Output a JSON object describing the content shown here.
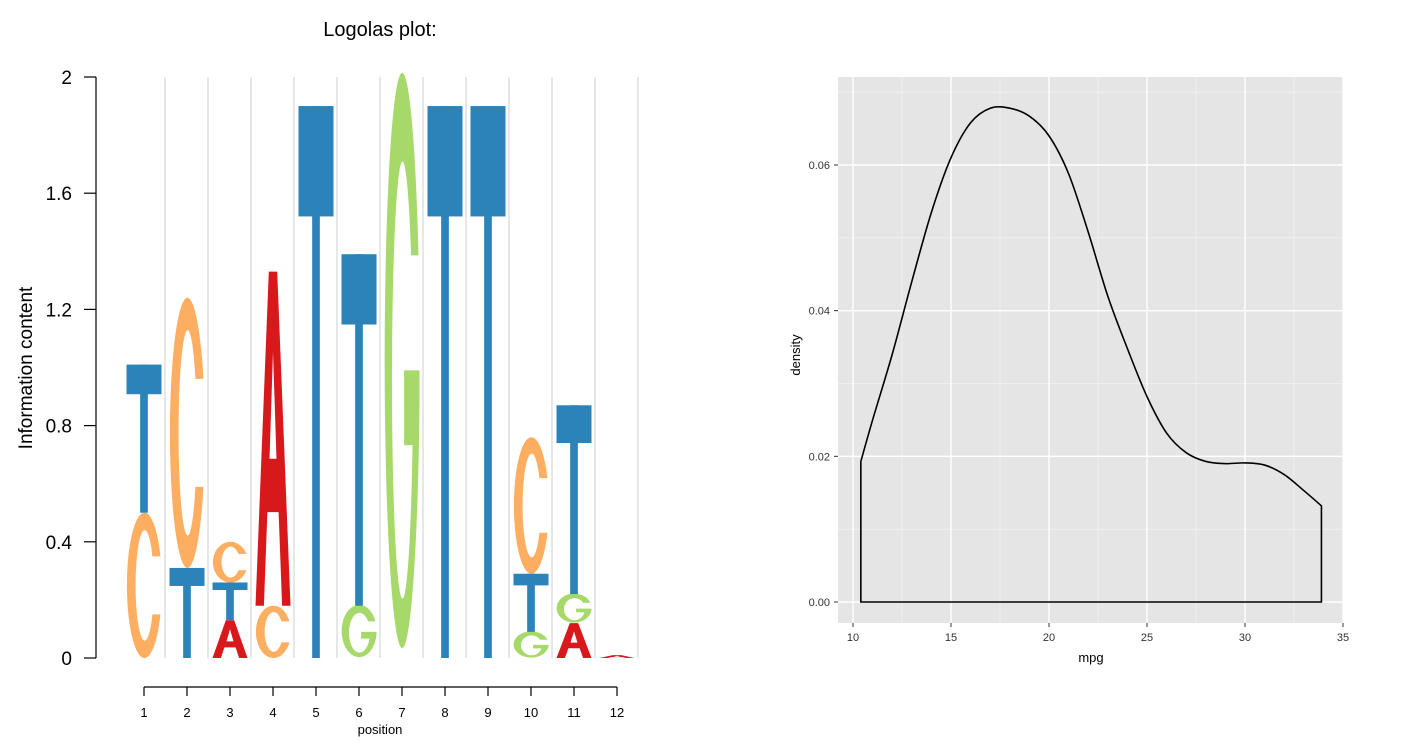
{
  "chart_data": [
    {
      "type": "sequence-logo",
      "title": "Logolas plot:",
      "xlabel": "position",
      "ylabel": "Information content",
      "ylim": [
        0,
        2
      ],
      "yticks": [
        "0",
        "0.4",
        "0.8",
        "1.2",
        "1.6",
        "2"
      ],
      "xticks": [
        "1",
        "2",
        "3",
        "4",
        "5",
        "6",
        "7",
        "8",
        "9",
        "10",
        "11",
        "12"
      ],
      "colors": {
        "A": "#d7191c",
        "C": "#fdae61",
        "G": "#a6d96a",
        "T": "#2b83ba"
      },
      "positions": [
        {
          "pos": "1",
          "stack": [
            {
              "letter": "C",
              "from": 0,
              "to": 0.5
            },
            {
              "letter": "T",
              "from": 0.5,
              "to": 1.01
            }
          ]
        },
        {
          "pos": "2",
          "stack": [
            {
              "letter": "T",
              "from": 0,
              "to": 0.31
            },
            {
              "letter": "C",
              "from": 0.31,
              "to": 1.24
            }
          ]
        },
        {
          "pos": "3",
          "stack": [
            {
              "letter": "A",
              "from": 0,
              "to": 0.13
            },
            {
              "letter": "T",
              "from": 0.13,
              "to": 0.26
            },
            {
              "letter": "C",
              "from": 0.26,
              "to": 0.4
            }
          ]
        },
        {
          "pos": "4",
          "stack": [
            {
              "letter": "C",
              "from": 0,
              "to": 0.18
            },
            {
              "letter": "A",
              "from": 0.18,
              "to": 1.33
            }
          ]
        },
        {
          "pos": "5",
          "stack": [
            {
              "letter": "T",
              "from": 0,
              "to": 1.9
            }
          ]
        },
        {
          "pos": "6",
          "stack": [
            {
              "letter": "G",
              "from": 0,
              "to": 0.18
            },
            {
              "letter": "T",
              "from": 0.18,
              "to": 1.39
            }
          ]
        },
        {
          "pos": "7",
          "stack": [
            {
              "letter": "G",
              "from": 0,
              "to": 1.98
            }
          ]
        },
        {
          "pos": "8",
          "stack": [
            {
              "letter": "T",
              "from": 0,
              "to": 1.9
            }
          ]
        },
        {
          "pos": "9",
          "stack": [
            {
              "letter": "T",
              "from": 0,
              "to": 1.9
            }
          ]
        },
        {
          "pos": "10",
          "stack": [
            {
              "letter": "G",
              "from": 0,
              "to": 0.09
            },
            {
              "letter": "T",
              "from": 0.09,
              "to": 0.29
            },
            {
              "letter": "C",
              "from": 0.29,
              "to": 0.76
            }
          ]
        },
        {
          "pos": "11",
          "stack": [
            {
              "letter": "A",
              "from": 0,
              "to": 0.12
            },
            {
              "letter": "G",
              "from": 0.12,
              "to": 0.22
            },
            {
              "letter": "T",
              "from": 0.22,
              "to": 0.87
            }
          ]
        },
        {
          "pos": "12",
          "stack": [
            {
              "letter": "A",
              "from": 0,
              "to": 0.01
            }
          ]
        }
      ]
    },
    {
      "type": "line",
      "xlabel": "mpg",
      "ylabel": "density",
      "xlim": [
        10.4,
        33.9
      ],
      "ylim": [
        0,
        0.068
      ],
      "xticks": [
        "10",
        "15",
        "20",
        "25",
        "30",
        "35"
      ],
      "yticks": [
        "0.00",
        "0.02",
        "0.04",
        "0.06"
      ],
      "grid": true,
      "series": [
        {
          "x": [
            10.4,
            11,
            12,
            13,
            14,
            15,
            16,
            17,
            18,
            19,
            20,
            21,
            22,
            23,
            24,
            25,
            26,
            27,
            28,
            29,
            30,
            31,
            32,
            33,
            33.9
          ],
          "y": [
            0.0193,
            0.025,
            0.034,
            0.044,
            0.0535,
            0.061,
            0.0658,
            0.0678,
            0.0678,
            0.0667,
            0.064,
            0.0588,
            0.0508,
            0.042,
            0.0348,
            0.0282,
            0.0232,
            0.0205,
            0.0193,
            0.019,
            0.0191,
            0.0188,
            0.0175,
            0.0153,
            0.0132
          ]
        }
      ]
    }
  ]
}
